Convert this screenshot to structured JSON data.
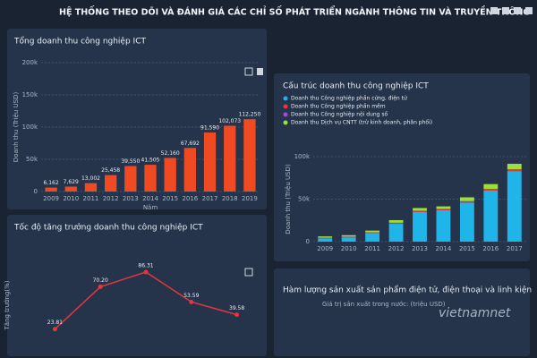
{
  "header": {
    "title": "HỆ THỐNG THEO DÕI VÀ ĐÁNH GIÁ CÁC CHỈ SỐ PHÁT TRIỂN NGÀNH THÔNG TIN VÀ TRUYỀN THÔNG"
  },
  "panel4": {
    "title": "Hàm lượng sản xuất sản phẩm điện tử, điện thoại và linh kiện",
    "subtitle": "Giá trị sản xuất trong nước: (triệu USD)"
  },
  "watermark": "vietnamnet",
  "chart_data": [
    {
      "type": "bar",
      "title": "Tổng doanh thu công nghiệp ICT",
      "y_label": "Doanh thu (Triệu USD)",
      "x_label": "Năm",
      "categories": [
        "2009",
        "2010",
        "2011",
        "2012",
        "2013",
        "2014",
        "2015",
        "2016",
        "2017",
        "2018",
        "2019"
      ],
      "values": [
        6162,
        7629,
        13002,
        25458,
        39550,
        41505,
        52160,
        67692,
        91590,
        102073,
        112250
      ],
      "value_labels": [
        "6,162",
        "7,629",
        "13,002",
        "25,458",
        "39,550",
        "41,505",
        "52,160",
        "67,692",
        "91,590",
        "102,073",
        "112,250"
      ],
      "color": "#f04a23",
      "ylim": [
        0,
        200000
      ],
      "yticks": [
        {
          "value": 0,
          "label": "0"
        },
        {
          "value": 50000,
          "label": "50k"
        },
        {
          "value": 100000,
          "label": "100k"
        },
        {
          "value": 150000,
          "label": "150k"
        },
        {
          "value": 200000,
          "label": "200k"
        }
      ],
      "grid": true
    },
    {
      "type": "stacked_bar",
      "title": "Cấu trúc doanh thu công nghiệp ICT",
      "y_label": "Doanh thu (Triệu USD)",
      "categories": [
        "2009",
        "2010",
        "2011",
        "2012",
        "2013",
        "2014",
        "2015",
        "2016",
        "2017"
      ],
      "series": [
        {
          "name": "Doanh thu Công nghiệp phần cứng, điện tử",
          "color": "#1fb5e8",
          "values": [
            4000,
            5000,
            10000,
            21000,
            35000,
            37000,
            46000,
            60000,
            83000
          ]
        },
        {
          "name": "Doanh thu Công nghiệp phần mềm",
          "color": "#e8343f",
          "values": [
            400,
            500,
            600,
            700,
            800,
            900,
            1000,
            1200,
            1300
          ]
        },
        {
          "name": "Doanh thu Công nghiệp nội dung số",
          "color": "#a04ad8",
          "values": [
            300,
            400,
            500,
            600,
            650,
            700,
            750,
            800,
            850
          ]
        },
        {
          "name": "Doanh thu Dịch vụ CNTT (trừ kinh doanh, phân phối)",
          "color": "#9be03a",
          "values": [
            1500,
            1700,
            1900,
            3000,
            3100,
            2900,
            4400,
            5700,
            6400
          ]
        }
      ],
      "ylim": [
        0,
        100000
      ],
      "yticks": [
        {
          "value": 0,
          "label": "0"
        },
        {
          "value": 50000,
          "label": "50k"
        },
        {
          "value": 100000,
          "label": "100k"
        }
      ],
      "grid": true
    },
    {
      "type": "line",
      "title": "Tốc độ tăng trưởng doanh thu công nghiệp ICT",
      "y_label": "Tăng trưởng(%)",
      "categories": [
        null,
        null,
        null,
        null,
        null
      ],
      "values": [
        23.81,
        70.2,
        86.31,
        53.59,
        39.58
      ],
      "value_labels": [
        "23.81",
        "70.20",
        "86.31",
        "53.59",
        "39.58"
      ],
      "color": "#e8343f",
      "ylim": [
        0,
        100
      ],
      "grid": true
    }
  ]
}
